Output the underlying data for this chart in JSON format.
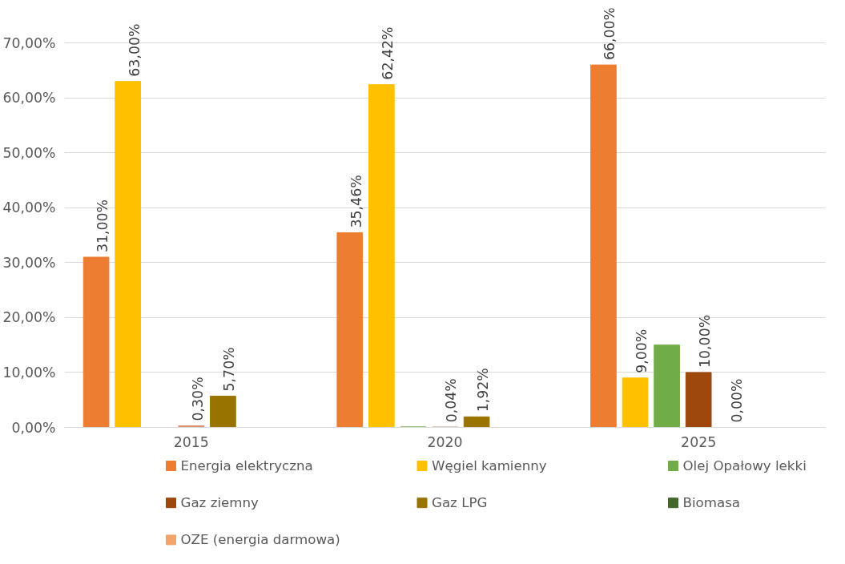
{
  "chart_data": {
    "type": "bar",
    "categories": [
      "2015",
      "2020",
      "2025"
    ],
    "series": [
      {
        "name": "Energia elektryczna",
        "color": "#ed7d31",
        "values": [
          31.0,
          35.46,
          66.0
        ],
        "value_labels": [
          "31,00%",
          "35,46%",
          "66,00%"
        ]
      },
      {
        "name": "Węgiel kamienny",
        "color": "#ffc000",
        "values": [
          63.0,
          62.42,
          9.0
        ],
        "value_labels": [
          "63,00%",
          "62,42%",
          "9,00%"
        ]
      },
      {
        "name": "Olej Opałowy lekki",
        "color": "#70ad47",
        "values": [
          null,
          0.1,
          15.0
        ]
      },
      {
        "name": "Gaz ziemny",
        "color": "#9e480e",
        "colors": [
          "#d9906a",
          "#9e480e",
          "#9e480e"
        ],
        "values": [
          0.3,
          0.04,
          10.0
        ],
        "value_labels": [
          "0,30%",
          "0,04%",
          "10,00%"
        ]
      },
      {
        "name": "Gaz LPG",
        "color": "#997300",
        "values": [
          5.7,
          1.92,
          0.0
        ],
        "value_labels": [
          "5,70%",
          "1,92%",
          "0,00%"
        ]
      },
      {
        "name": "Biomasa",
        "color": "#43682b",
        "values": [
          null,
          null,
          null
        ]
      },
      {
        "name": "OZE (energia darmowa)",
        "color": "#f4a46a",
        "values": [
          null,
          null,
          null
        ]
      }
    ],
    "ylim": [
      0,
      70
    ],
    "yticks": [
      {
        "value": 0,
        "label": "0,00%"
      },
      {
        "value": 10,
        "label": "10,00%"
      },
      {
        "value": 20,
        "label": "20,00%"
      },
      {
        "value": 30,
        "label": "30,00%"
      },
      {
        "value": 40,
        "label": "40,00%"
      },
      {
        "value": 50,
        "label": "50,00%"
      },
      {
        "value": 60,
        "label": "60,00%"
      },
      {
        "value": 70,
        "label": "70,00%"
      }
    ],
    "grid": "y",
    "legend": "bottom"
  }
}
